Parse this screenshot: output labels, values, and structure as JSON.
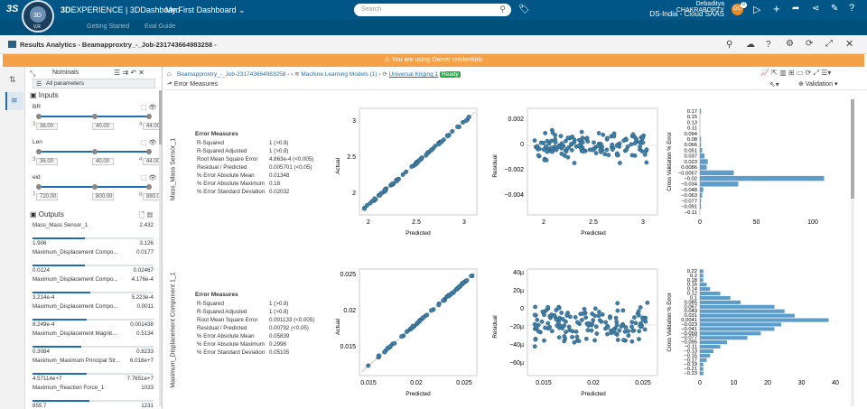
{
  "topbar": {
    "brand_prefix": "3D",
    "brand": "EXPERIENCE | 3DDashboard",
    "dashboard": "My First Dashboard",
    "search_placeholder": "Search",
    "user_name": "Debaditya CHAKRABORTY",
    "tenant": "DS-India - Cloud SAAS",
    "badge": "0",
    "avatar": "DC",
    "compass_label": "V,R"
  },
  "tabbar": {
    "tab1": "Getting Started",
    "tab2": "Eval Guide"
  },
  "appbar": {
    "title": "Results Analytics - Beamapproxtry_-_Job-231743664983258 -"
  },
  "banner": {
    "text": "You are using Owner credentials"
  },
  "panel": {
    "header": "Nominals",
    "filter": "All parameters",
    "inputs_label": "Inputs",
    "outputs_label": "Outputs",
    "inputs": [
      {
        "name": "BR",
        "box_min": "36.00",
        "box_mid": "40.00",
        "box_max": "44.00",
        "tick_min": "3",
        "tick_max": "4"
      },
      {
        "name": "Len",
        "box_min": "36.00",
        "box_mid": "40.00",
        "box_max": "44.00",
        "tick_min": "3",
        "tick_max": "4"
      },
      {
        "name": "eid",
        "box_min": "720.00",
        "box_mid": "800.00",
        "box_max": "880.00",
        "tick_min": "7",
        "tick_max": "8"
      }
    ],
    "outputs": [
      {
        "name": "Mass_Mass Sensor_1",
        "value": "2.432",
        "min": "1.906",
        "max": "3.126",
        "fill": 0.43
      },
      {
        "name": "Maximum_Displacement Compo...",
        "value": "0.0177",
        "min": "0.0124",
        "max": "0.02467",
        "fill": 0.43
      },
      {
        "name": "Maximum_Displacement Compo...",
        "value": "4.176e-4",
        "min": "3.214e-4",
        "max": "5.223e-4",
        "fill": 0.48
      },
      {
        "name": "Maximum_Displacement Compo...",
        "value": "0.0011",
        "min": "8.249e-4",
        "max": "0.001438",
        "fill": 0.45
      },
      {
        "name": "Maximum_Displacement Magnit...",
        "value": "0.5134",
        "min": "0.3084",
        "max": "0.8233",
        "fill": 0.4
      },
      {
        "name": "Maximum_Maximum Principal Str...",
        "value": "6.018e+7",
        "min": "4.57114e+7",
        "max": "7.7651e+7",
        "fill": 0.45
      },
      {
        "name": "Maximum_Reaction Force_1",
        "value": "1033",
        "min": "855.7",
        "max": "1231",
        "fill": 0.47
      }
    ]
  },
  "breadcrumb": {
    "b1": "Beamapproxtry_-_Job-231743664983258 -",
    "b2": "Machine Learning Models (1)",
    "b3": "Universal Kriging 1",
    "status": "Ready"
  },
  "subbar": {
    "error_measures": "Error Measures",
    "validation": "Validation"
  },
  "metric_labels": [
    "R-Squared",
    "R-Squared Adjusted",
    "Root Mean Square Error",
    "Residual / Predicted",
    "% Error Absolute Mean",
    "% Error Absolute Maximum",
    "% Error Standard Deviation"
  ],
  "models": [
    {
      "row_label": "Mass_Mass Sensor_1",
      "title": "Error Measures",
      "metrics": [
        "1 (>0.8)",
        "1 (>0.8)",
        "4.863e-4 (<0.005)",
        "0.005701 (<0.05)",
        "0.01348",
        "0.18",
        "0.02032"
      ],
      "scatter": {
        "xticks": [
          "2",
          "2.5",
          "3"
        ],
        "yticks": [
          "2",
          "2.5",
          "3"
        ],
        "xlabel": "Predicted",
        "ylabel": "Actual"
      },
      "resid": {
        "xticks": [
          "2",
          "2.5",
          "3"
        ],
        "yticks": [
          "0.002",
          "0",
          "−0.002",
          "−0.004"
        ],
        "xlabel": "Predicted",
        "ylabel": "Residual"
      },
      "hist": {
        "ylabel": "Cross Validation % Error",
        "cats": [
          "0.17",
          "0.15",
          "0.13",
          "0.11",
          "0.094",
          "0.08",
          "0.066",
          "0.051",
          "0.037",
          "0.023",
          "0.0086",
          "−0.0057",
          "−0.02",
          "−0.034",
          "−0.048",
          "−0.063",
          "−0.077",
          "−0.091",
          "−0.11"
        ],
        "values": [
          1,
          0,
          0,
          0,
          0,
          1,
          1,
          2,
          4,
          7,
          6,
          30,
          110,
          34,
          3,
          2,
          1,
          1,
          0
        ],
        "xticks": [
          "0",
          "50",
          "100"
        ],
        "xmax": 120
      }
    },
    {
      "row_label": "Maximum_Displacement Component 1_1",
      "title": "Error Measures",
      "metrics": [
        "1 (>0.8)",
        "1 (>0.8)",
        "0.001133 (<0.005)",
        "0.00792 (<0.05)",
        "0.05839",
        "0.2998",
        "0.05105"
      ],
      "scatter": {
        "xticks": [
          "0.015",
          "0.02",
          "0.025"
        ],
        "yticks": [
          "0.025",
          "0.02",
          "0.015"
        ],
        "xlabel": "Predicted",
        "ylabel": "Actual"
      },
      "resid": {
        "xticks": [
          "0.015",
          "0.02",
          "0.025"
        ],
        "yticks": [
          "40µ",
          "20µ",
          "0",
          "−20µ",
          "−40µ",
          "−60µ"
        ],
        "xlabel": "Predicted",
        "ylabel": "Residual"
      },
      "hist": {
        "ylabel": "Cross Validation % Error",
        "cats": [
          "0.22",
          "0.2",
          "0.18",
          "0.16",
          "0.14",
          "0.12",
          "0.1",
          "0.085",
          "0.067",
          "0.049",
          "0.031",
          "0.0041",
          "−0.023",
          "−0.041",
          "−0.059",
          "−0.077",
          "−0.095",
          "−0.11",
          "−0.13",
          "−0.15",
          "−0.17",
          "−0.19",
          "−0.21",
          "−0.23"
        ],
        "values": [
          1,
          1,
          1,
          2,
          3,
          6,
          9,
          12,
          22,
          25,
          28,
          38,
          24,
          22,
          18,
          14,
          8,
          6,
          4,
          3,
          2,
          1,
          1,
          1
        ],
        "xticks": [
          "0",
          "10",
          "20",
          "30",
          "40"
        ],
        "xmax": 40
      }
    }
  ],
  "colors": {
    "topbar": "#005686",
    "banner": "#f4a148",
    "accent": "#1f6fb0",
    "point": "#3f7fa6",
    "ready": "#2ea84a"
  }
}
